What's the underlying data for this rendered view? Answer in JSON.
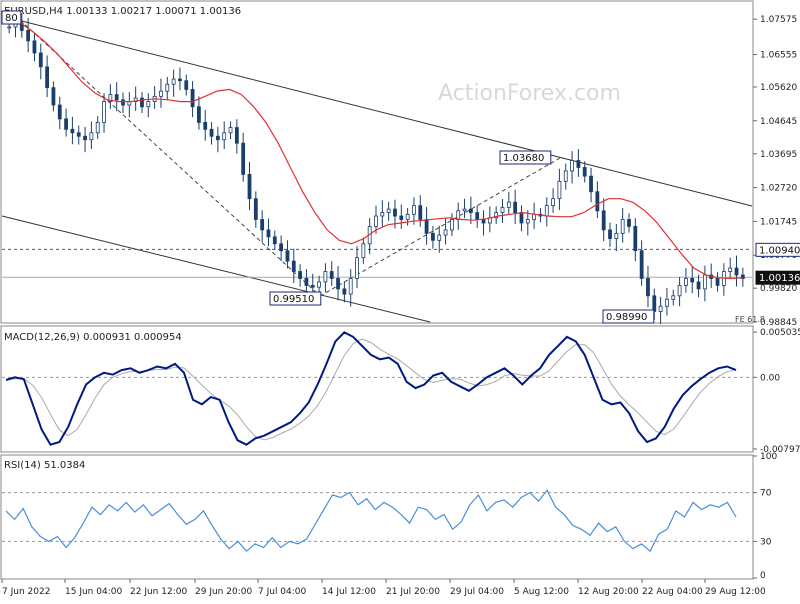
{
  "chart_data": [
    {
      "type": "candlestick",
      "panel": "price",
      "header": "EURUSD,H4  1.00133 1.00217 1.00071 1.00136",
      "watermark": "ActionForex.com",
      "ylim": [
        0.98845,
        1.0807
      ],
      "y_ticks": [
        "1.07575",
        "1.06555",
        "1.05620",
        "1.04645",
        "1.03695",
        "1.02720",
        "1.01745",
        "1.00770",
        "0.99820",
        "0.98845"
      ],
      "y_tick_values": [
        1.07575,
        1.06555,
        1.0562,
        1.04645,
        1.03695,
        1.0272,
        1.01745,
        1.0077,
        0.9982,
        0.98845
      ],
      "current_price": "1.00136",
      "current_price_value": 1.00136,
      "dashed_level": "1.00940",
      "dashed_level_value": 1.0094,
      "annotations": [
        {
          "label": "0.99510",
          "value": 0.9951
        },
        {
          "label": "1.03680",
          "value": 1.0368
        },
        {
          "label": "0.98990",
          "value": 0.9899
        },
        {
          "label": "FE 61.8",
          "value": 0.98845
        },
        {
          "label": "80",
          "value": 1.078
        }
      ],
      "close_series": [
        1.0735,
        1.0745,
        1.0725,
        1.0695,
        1.066,
        1.062,
        1.056,
        1.051,
        1.047,
        1.044,
        1.043,
        1.042,
        1.041,
        1.043,
        1.046,
        1.052,
        1.054,
        1.0525,
        1.051,
        1.052,
        1.053,
        1.0505,
        1.052,
        1.0535,
        1.055,
        1.057,
        1.0585,
        1.058,
        1.0555,
        1.0505,
        1.046,
        1.044,
        1.042,
        1.041,
        1.043,
        1.0445,
        1.04,
        1.031,
        1.024,
        1.018,
        1.015,
        1.013,
        1.011,
        1.009,
        1.006,
        1.003,
        1.001,
        0.999,
        0.9985,
        1.0,
        1.003,
        1.001,
        0.998,
        0.9965,
        1.001,
        1.007,
        1.011,
        1.016,
        1.019,
        1.02,
        1.021,
        1.019,
        1.018,
        1.0195,
        1.022,
        1.018,
        1.014,
        1.012,
        1.0135,
        1.015,
        1.018,
        1.0205,
        1.021,
        1.02,
        1.018,
        1.017,
        1.0185,
        1.02,
        1.0215,
        1.023,
        1.02,
        1.017,
        1.018,
        1.0195,
        1.019,
        1.022,
        1.024,
        1.029,
        1.032,
        1.035,
        1.033,
        1.0305,
        1.026,
        1.0205,
        1.015,
        1.0125,
        1.014,
        1.018,
        1.016,
        1.009,
        1.001,
        0.996,
        0.9915,
        0.993,
        0.995,
        0.996,
        0.999,
        1.001,
        1.0,
        0.998,
        1.002,
        1.001,
        0.999,
        1.003,
        1.004,
        1.002,
        1.001
      ],
      "ma_series": [
        1.077,
        1.0745,
        1.072,
        1.069,
        1.0655,
        1.0615,
        1.0575,
        1.0545,
        1.0525,
        1.052,
        1.052,
        1.0525,
        1.0528,
        1.0525,
        1.052,
        1.052,
        1.0535,
        1.055,
        1.0555,
        1.054,
        1.0505,
        1.046,
        1.04,
        1.033,
        1.026,
        1.02,
        1.015,
        1.012,
        1.011,
        1.0125,
        1.015,
        1.0165,
        1.017,
        1.0175,
        1.0178,
        1.0182,
        1.0185,
        1.018,
        1.0178,
        1.0182,
        1.019,
        1.0195,
        1.02,
        1.0195,
        1.019,
        1.0188,
        1.0188,
        1.02,
        1.0222,
        1.024,
        1.024,
        1.023,
        1.0205,
        1.017,
        1.0125,
        1.008,
        1.004,
        1.002,
        1.0012,
        1.001,
        1.0012
      ],
      "ma_x": [
        0,
        2,
        4,
        6,
        8,
        10,
        12,
        14,
        16,
        18,
        20,
        22,
        24,
        26,
        28,
        30,
        32,
        34,
        36,
        38,
        40,
        42,
        44,
        46,
        48,
        50,
        52,
        54,
        56,
        58,
        60,
        62,
        64,
        66,
        68,
        70,
        72,
        74,
        76,
        78,
        80,
        82,
        84,
        86,
        88,
        90,
        92,
        94,
        96,
        98,
        100,
        102,
        104,
        106,
        108,
        110,
        112,
        114,
        116,
        118,
        120
      ]
    },
    {
      "type": "line",
      "panel": "macd",
      "header": "MACD(12,26,9) 0.000931 0.000954",
      "y_ticks": [
        "0.005035",
        "0.00",
        "-0.007973"
      ],
      "y_tick_values": [
        0.005035,
        0.0,
        -0.007973
      ],
      "ylim": [
        -0.0082,
        0.0056
      ],
      "series": [
        {
          "values": [
            -0.0003,
            0.0,
            -0.0002,
            -0.003,
            -0.0058,
            -0.0075,
            -0.0072,
            -0.0055,
            -0.003,
            -0.0008,
            0.0,
            0.0005,
            0.0003,
            0.0008,
            0.001,
            0.0005,
            0.0008,
            0.0012,
            0.001,
            0.0015,
            0.0005,
            -0.0025,
            -0.003,
            -0.0022,
            -0.0025,
            -0.005,
            -0.007,
            -0.0075,
            -0.0068,
            -0.0065,
            -0.006,
            -0.0055,
            -0.005,
            -0.004,
            -0.0028,
            -0.0008,
            0.0015,
            0.004,
            0.005,
            0.0045,
            0.0035,
            0.0025,
            0.002,
            0.0022,
            0.0015,
            -0.0005,
            -0.0012,
            -0.0008,
            0.0002,
            0.0005,
            -0.0005,
            -0.001,
            -0.0015,
            -0.0008,
            0.0,
            0.0005,
            0.001,
            0.0002,
            -0.0008,
            0.0002,
            0.001,
            0.0025,
            0.0035,
            0.0045,
            0.004,
            0.0025,
            0.0,
            -0.0025,
            -0.003,
            -0.0028,
            -0.004,
            -0.006,
            -0.0072,
            -0.0068,
            -0.0055,
            -0.0035,
            -0.002,
            -0.001,
            -0.0002,
            0.0005,
            0.001,
            0.0012,
            0.0008
          ]
        }
      ]
    },
    {
      "type": "line",
      "panel": "rsi",
      "header": "RSI(14) 51.0384",
      "y_ticks": [
        "100",
        "70",
        "30",
        "0"
      ],
      "y_tick_values": [
        100,
        70,
        30,
        0
      ],
      "ylim": [
        0,
        100
      ],
      "series": [
        {
          "values": [
            55,
            48,
            57,
            42,
            34,
            30,
            34,
            25,
            33,
            45,
            58,
            52,
            60,
            55,
            62,
            54,
            60,
            51,
            56,
            61,
            52,
            44,
            48,
            55,
            43,
            32,
            24,
            30,
            22,
            28,
            25,
            33,
            25,
            30,
            28,
            32,
            44,
            56,
            68,
            66,
            70,
            60,
            65,
            56,
            62,
            58,
            52,
            45,
            58,
            56,
            48,
            52,
            40,
            46,
            60,
            68,
            55,
            62,
            64,
            58,
            66,
            70,
            63,
            72,
            58,
            52,
            43,
            40,
            35,
            45,
            38,
            42,
            30,
            24,
            28,
            22,
            36,
            40,
            55,
            50,
            62,
            56,
            60,
            58,
            62,
            50
          ]
        }
      ]
    }
  ],
  "x_axis": {
    "labels": [
      "7 Jun 2022",
      "15 Jun 04:00",
      "22 Jun 12:00",
      "29 Jun 20:00",
      "7 Jul 04:00",
      "14 Jul 12:00",
      "21 Jul 20:00",
      "29 Jul 04:00",
      "5 Aug 12:00",
      "12 Aug 20:00",
      "22 Aug 04:00",
      "29 Aug 12:00"
    ]
  },
  "colors": {
    "candle": "#1a3f6b",
    "ma": "#e03131",
    "macd_line": "#001a80",
    "macd_signal": "#aaaaaa",
    "rsi_line": "#4a90d9",
    "channel": "#333333",
    "label_box": "#1a2a7a",
    "watermark": "#d8d8d8"
  }
}
